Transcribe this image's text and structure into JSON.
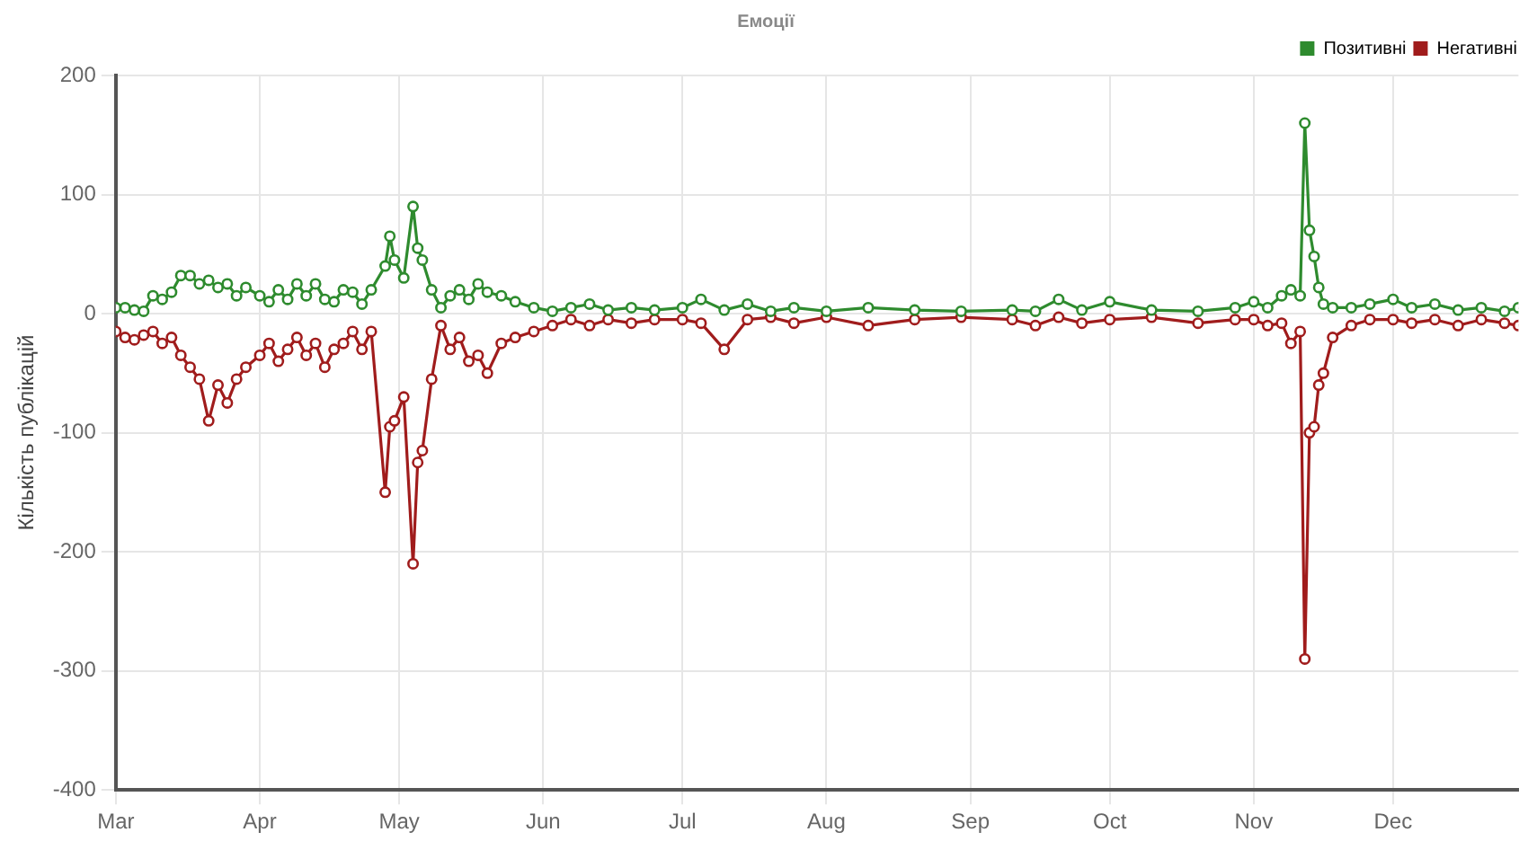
{
  "chart_data": {
    "type": "line",
    "title": "Емоції",
    "ylabel": "Кількість публікацій",
    "x": [
      "--03-01",
      "--03-03",
      "--03-05",
      "--03-07",
      "--03-09",
      "--03-11",
      "--03-13",
      "--03-15",
      "--03-17",
      "--03-19",
      "--03-21",
      "--03-23",
      "--03-25",
      "--03-27",
      "--03-29",
      "--04-01",
      "--04-03",
      "--04-05",
      "--04-07",
      "--04-09",
      "--04-11",
      "--04-13",
      "--04-15",
      "--04-17",
      "--04-19",
      "--04-21",
      "--04-23",
      "--04-25",
      "--04-28",
      "--04-29",
      "--04-30",
      "--05-02",
      "--05-04",
      "--05-05",
      "--05-06",
      "--05-08",
      "--05-10",
      "--05-12",
      "--05-14",
      "--05-16",
      "--05-18",
      "--05-20",
      "--05-23",
      "--05-26",
      "--05-30",
      "--06-03",
      "--06-07",
      "--06-11",
      "--06-15",
      "--06-20",
      "--06-25",
      "--07-01",
      "--07-05",
      "--07-10",
      "--07-15",
      "--07-20",
      "--07-25",
      "--08-01",
      "--08-10",
      "--08-20",
      "--08-30",
      "--09-10",
      "--09-15",
      "--09-20",
      "--09-25",
      "--10-01",
      "--10-10",
      "--10-20",
      "--10-28",
      "--11-01",
      "--11-04",
      "--11-07",
      "--11-09",
      "--11-11",
      "--11-12",
      "--11-13",
      "--11-14",
      "--11-15",
      "--11-16",
      "--11-18",
      "--11-22",
      "--11-26",
      "--12-01",
      "--12-05",
      "--12-10",
      "--12-15",
      "--12-20",
      "--12-25",
      "--12-28"
    ],
    "series": [
      {
        "name": "Позитивні",
        "color": "#2e8b2e",
        "values": [
          5,
          5,
          3,
          2,
          15,
          12,
          18,
          32,
          32,
          25,
          28,
          22,
          25,
          15,
          22,
          15,
          10,
          20,
          12,
          25,
          15,
          25,
          12,
          10,
          20,
          18,
          8,
          20,
          40,
          65,
          45,
          30,
          90,
          55,
          45,
          20,
          5,
          15,
          20,
          12,
          25,
          18,
          15,
          10,
          5,
          2,
          5,
          8,
          3,
          5,
          3,
          5,
          12,
          3,
          8,
          2,
          5,
          2,
          5,
          3,
          2,
          3,
          2,
          12,
          3,
          10,
          3,
          2,
          5,
          10,
          5,
          15,
          20,
          15,
          160,
          70,
          48,
          22,
          8,
          5,
          5,
          8,
          12,
          5,
          8,
          3,
          5,
          2,
          5
        ]
      },
      {
        "name": "Негативні",
        "color": "#a01c1c",
        "values": [
          -15,
          -20,
          -22,
          -18,
          -15,
          -25,
          -20,
          -35,
          -45,
          -55,
          -90,
          -60,
          -75,
          -55,
          -45,
          -35,
          -25,
          -40,
          -30,
          -20,
          -35,
          -25,
          -45,
          -30,
          -25,
          -15,
          -30,
          -15,
          -150,
          -95,
          -90,
          -70,
          -210,
          -125,
          -115,
          -55,
          -10,
          -30,
          -20,
          -40,
          -35,
          -50,
          -25,
          -20,
          -15,
          -10,
          -5,
          -10,
          -5,
          -8,
          -5,
          -5,
          -8,
          -30,
          -5,
          -3,
          -8,
          -3,
          -10,
          -5,
          -3,
          -5,
          -10,
          -3,
          -8,
          -5,
          -3,
          -8,
          -5,
          -5,
          -10,
          -8,
          -25,
          -15,
          -290,
          -100,
          -95,
          -60,
          -50,
          -20,
          -10,
          -5,
          -5,
          -8,
          -5,
          -10,
          -5,
          -8,
          -10
        ]
      }
    ],
    "xlim": [
      "--03-01",
      "--12-28"
    ],
    "xticks": [
      {
        "value": "--03-01",
        "label": "Mar"
      },
      {
        "value": "--04-01",
        "label": "Apr"
      },
      {
        "value": "--05-01",
        "label": "May"
      },
      {
        "value": "--06-01",
        "label": "Jun"
      },
      {
        "value": "--07-01",
        "label": "Jul"
      },
      {
        "value": "--08-01",
        "label": "Aug"
      },
      {
        "value": "--09-01",
        "label": "Sep"
      },
      {
        "value": "--10-01",
        "label": "Oct"
      },
      {
        "value": "--11-01",
        "label": "Nov"
      },
      {
        "value": "--12-01",
        "label": "Dec"
      }
    ],
    "ylim": [
      -400,
      200
    ],
    "yticks": [
      -400,
      -300,
      -200,
      -100,
      0,
      100,
      200
    ],
    "grid": true,
    "legend": "top right",
    "marker": "circle",
    "line_style": "solid"
  }
}
